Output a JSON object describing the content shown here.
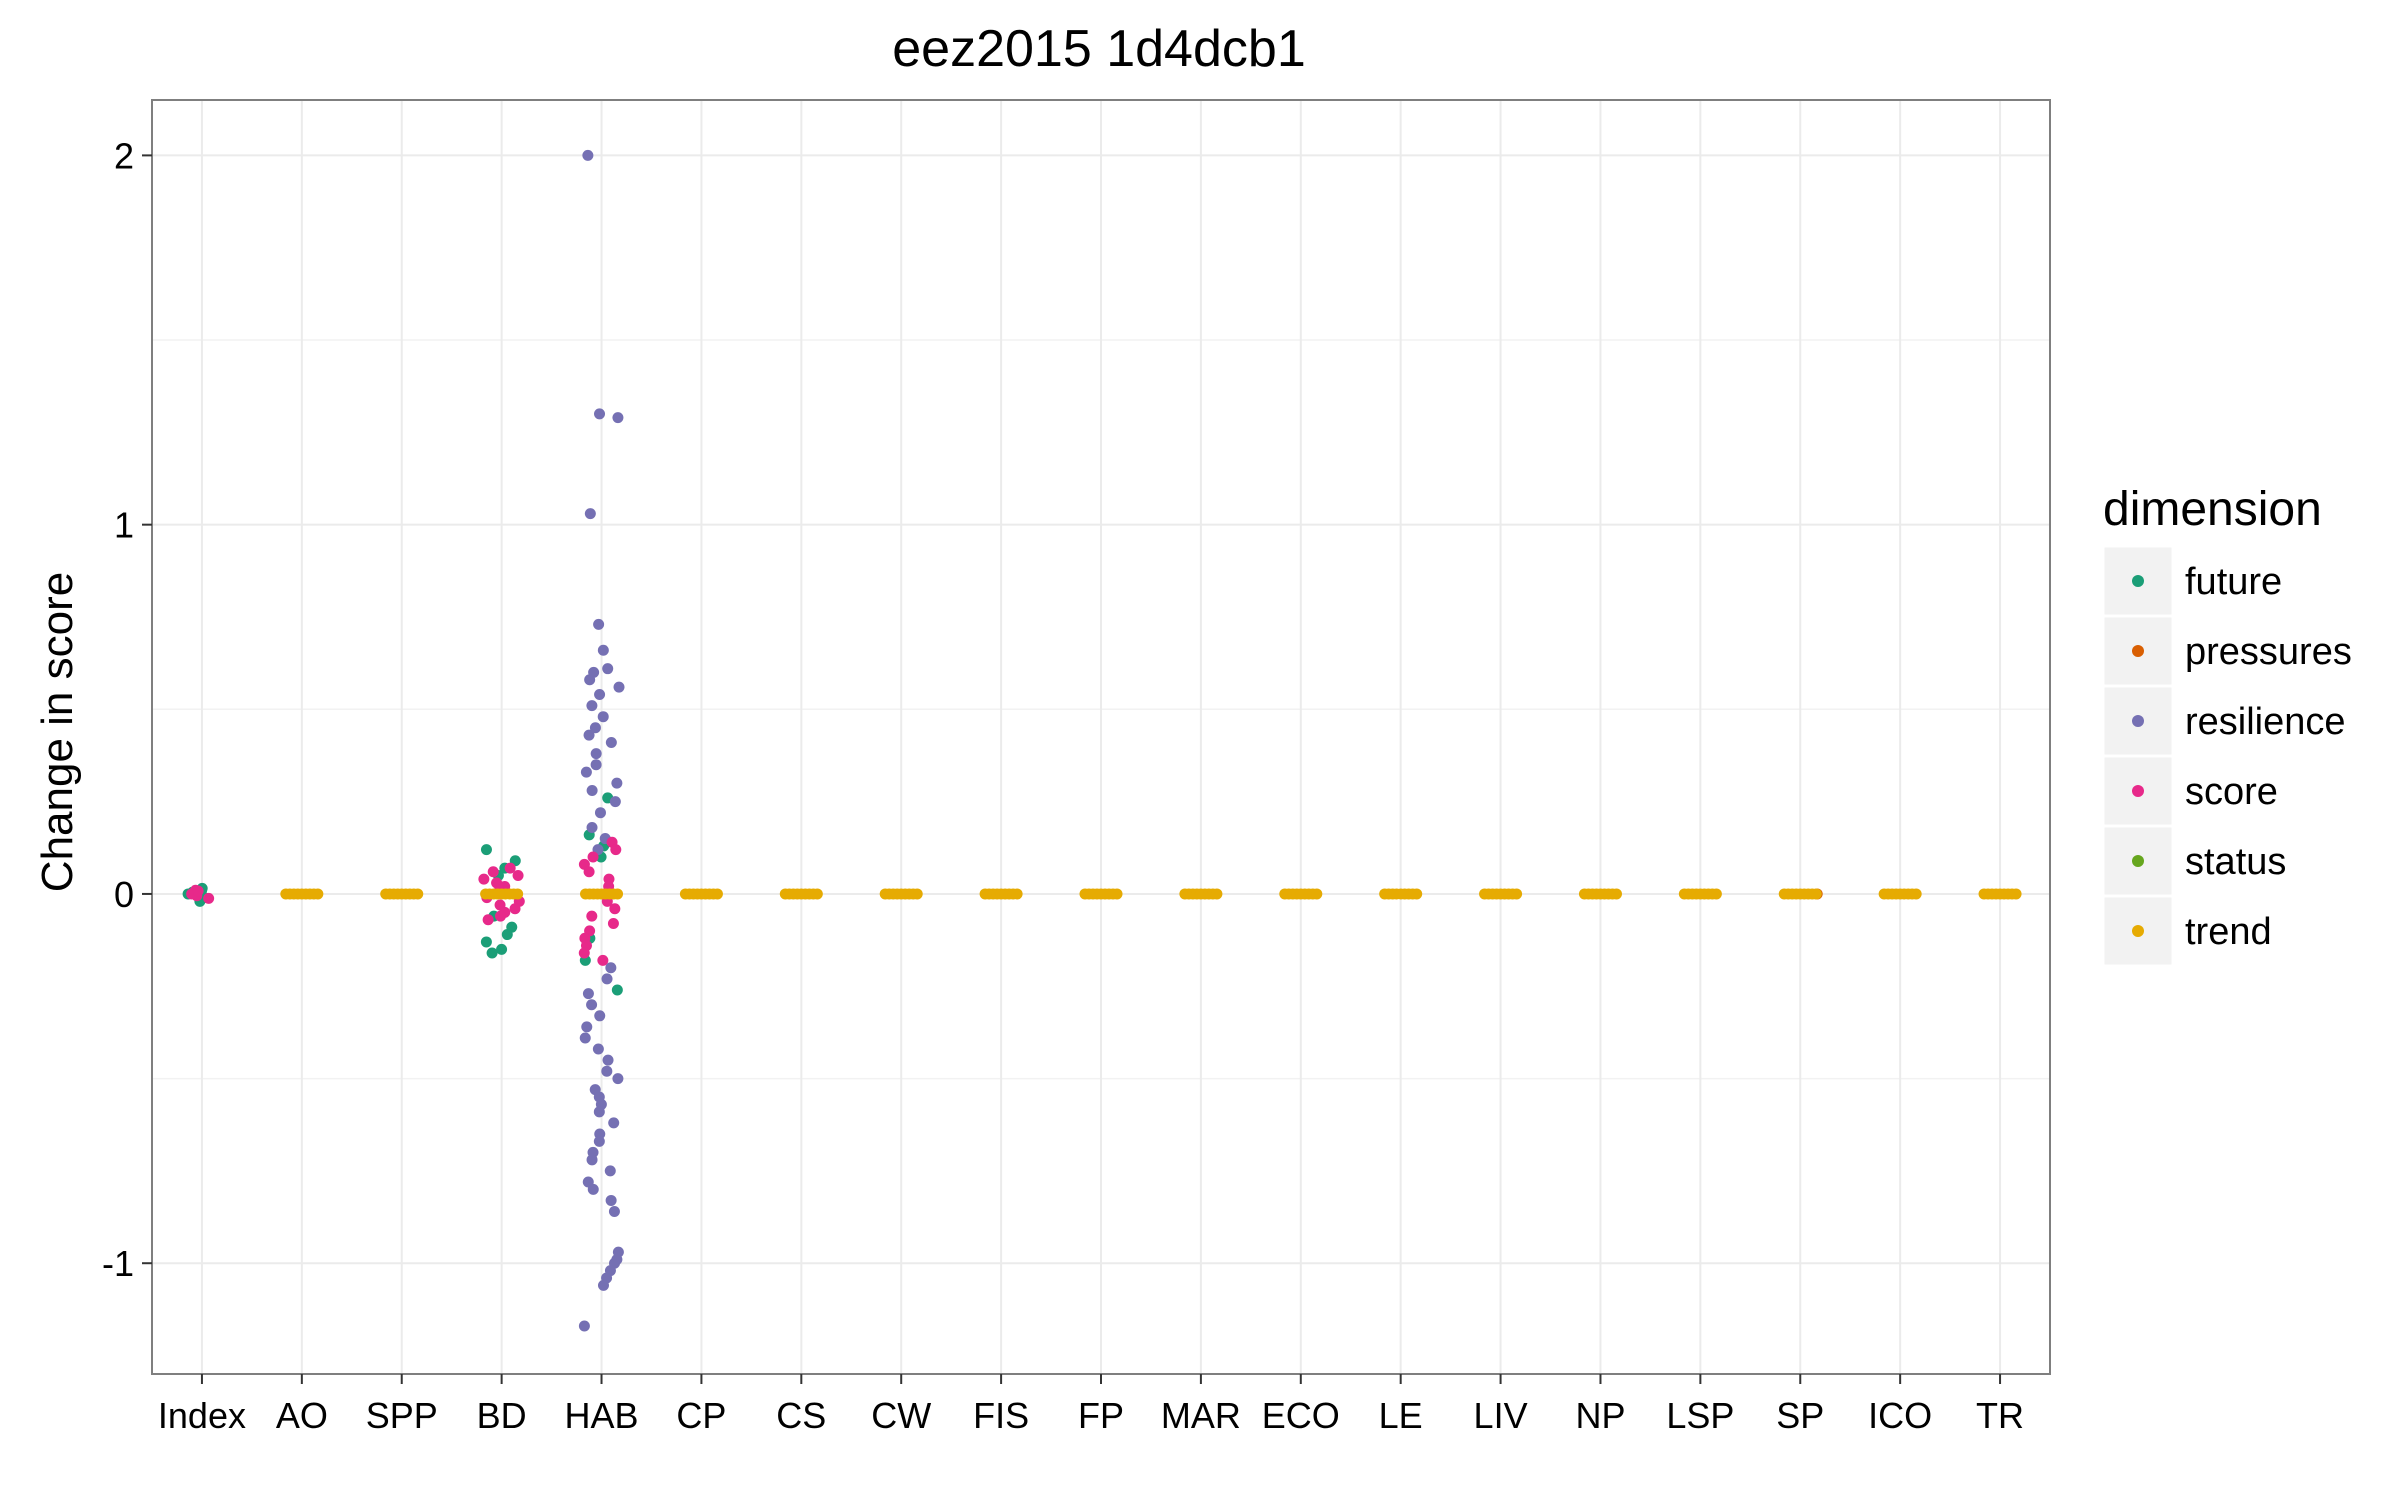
{
  "chart_data": {
    "type": "scatter",
    "title": "eez2015 1d4dcb1",
    "xlabel": "",
    "ylabel": "Change in score",
    "categories": [
      "Index",
      "AO",
      "SPP",
      "BD",
      "HAB",
      "CP",
      "CS",
      "CW",
      "FIS",
      "FP",
      "MAR",
      "ECO",
      "LE",
      "LIV",
      "NP",
      "LSP",
      "SP",
      "ICO",
      "TR"
    ],
    "y_ticks": [
      -1,
      0,
      1,
      2
    ],
    "ylim": [
      -1.3,
      2.15
    ],
    "grid": true,
    "legend": {
      "title": "dimension",
      "placement": "right",
      "items": [
        {
          "name": "future",
          "color": "#1b9e77"
        },
        {
          "name": "pressures",
          "color": "#d95f02"
        },
        {
          "name": "resilience",
          "color": "#7570b3"
        },
        {
          "name": "score",
          "color": "#e7298a"
        },
        {
          "name": "status",
          "color": "#66a61e"
        },
        {
          "name": "trend",
          "color": "#e6ab02"
        }
      ]
    },
    "series": [
      {
        "name": "future",
        "points": [
          [
            "Index",
            0.01
          ],
          [
            "Index",
            -0.01
          ],
          [
            "Index",
            0.0
          ],
          [
            "Index",
            0.005
          ],
          [
            "Index",
            -0.02
          ],
          [
            "Index",
            0.015
          ],
          [
            "BD",
            0.12
          ],
          [
            "BD",
            0.09
          ],
          [
            "BD",
            0.07
          ],
          [
            "BD",
            0.05
          ],
          [
            "BD",
            -0.06
          ],
          [
            "BD",
            -0.09
          ],
          [
            "BD",
            -0.11
          ],
          [
            "BD",
            -0.13
          ],
          [
            "BD",
            -0.15
          ],
          [
            "BD",
            -0.16
          ],
          [
            "HAB",
            0.26
          ],
          [
            "HAB",
            0.16
          ],
          [
            "HAB",
            0.13
          ],
          [
            "HAB",
            0.1
          ],
          [
            "HAB",
            -0.12
          ],
          [
            "HAB",
            -0.18
          ],
          [
            "HAB",
            -0.26
          ]
        ]
      },
      {
        "name": "pressures",
        "points": [
          [
            "SP",
            0.0
          ]
        ]
      },
      {
        "name": "resilience",
        "points": [
          [
            "HAB",
            2.0
          ],
          [
            "HAB",
            1.3
          ],
          [
            "HAB",
            1.29
          ],
          [
            "HAB",
            1.03
          ],
          [
            "HAB",
            0.73
          ],
          [
            "HAB",
            0.66
          ],
          [
            "HAB",
            0.61
          ],
          [
            "HAB",
            0.6
          ],
          [
            "HAB",
            0.58
          ],
          [
            "HAB",
            0.56
          ],
          [
            "HAB",
            0.54
          ],
          [
            "HAB",
            0.51
          ],
          [
            "HAB",
            0.48
          ],
          [
            "HAB",
            0.45
          ],
          [
            "HAB",
            0.43
          ],
          [
            "HAB",
            0.41
          ],
          [
            "HAB",
            0.38
          ],
          [
            "HAB",
            0.35
          ],
          [
            "HAB",
            0.33
          ],
          [
            "HAB",
            0.3
          ],
          [
            "HAB",
            0.28
          ],
          [
            "HAB",
            0.25
          ],
          [
            "HAB",
            0.22
          ],
          [
            "HAB",
            0.18
          ],
          [
            "HAB",
            0.15
          ],
          [
            "HAB",
            0.12
          ],
          [
            "HAB",
            -0.2
          ],
          [
            "HAB",
            -0.23
          ],
          [
            "HAB",
            -0.27
          ],
          [
            "HAB",
            -0.3
          ],
          [
            "HAB",
            -0.33
          ],
          [
            "HAB",
            -0.36
          ],
          [
            "HAB",
            -0.39
          ],
          [
            "HAB",
            -0.42
          ],
          [
            "HAB",
            -0.45
          ],
          [
            "HAB",
            -0.48
          ],
          [
            "HAB",
            -0.5
          ],
          [
            "HAB",
            -0.53
          ],
          [
            "HAB",
            -0.55
          ],
          [
            "HAB",
            -0.57
          ],
          [
            "HAB",
            -0.59
          ],
          [
            "HAB",
            -0.62
          ],
          [
            "HAB",
            -0.65
          ],
          [
            "HAB",
            -0.67
          ],
          [
            "HAB",
            -0.7
          ],
          [
            "HAB",
            -0.72
          ],
          [
            "HAB",
            -0.75
          ],
          [
            "HAB",
            -0.78
          ],
          [
            "HAB",
            -0.8
          ],
          [
            "HAB",
            -0.83
          ],
          [
            "HAB",
            -0.86
          ],
          [
            "HAB",
            -0.97
          ],
          [
            "HAB",
            -0.99
          ],
          [
            "HAB",
            -1.0
          ],
          [
            "HAB",
            -1.02
          ],
          [
            "HAB",
            -1.04
          ],
          [
            "HAB",
            -1.06
          ],
          [
            "HAB",
            -1.17
          ]
        ]
      },
      {
        "name": "score",
        "points": [
          [
            "Index",
            0.01
          ],
          [
            "Index",
            -0.005
          ],
          [
            "Index",
            0.0
          ],
          [
            "Index",
            0.008
          ],
          [
            "Index",
            -0.012
          ],
          [
            "BD",
            0.07
          ],
          [
            "BD",
            0.06
          ],
          [
            "BD",
            0.05
          ],
          [
            "BD",
            0.04
          ],
          [
            "BD",
            0.03
          ],
          [
            "BD",
            0.02
          ],
          [
            "BD",
            0.01
          ],
          [
            "BD",
            -0.01
          ],
          [
            "BD",
            -0.02
          ],
          [
            "BD",
            -0.03
          ],
          [
            "BD",
            -0.04
          ],
          [
            "BD",
            -0.05
          ],
          [
            "BD",
            -0.06
          ],
          [
            "BD",
            -0.07
          ],
          [
            "HAB",
            0.14
          ],
          [
            "HAB",
            0.12
          ],
          [
            "HAB",
            0.1
          ],
          [
            "HAB",
            0.08
          ],
          [
            "HAB",
            0.06
          ],
          [
            "HAB",
            0.04
          ],
          [
            "HAB",
            0.02
          ],
          [
            "HAB",
            -0.02
          ],
          [
            "HAB",
            -0.04
          ],
          [
            "HAB",
            -0.06
          ],
          [
            "HAB",
            -0.08
          ],
          [
            "HAB",
            -0.1
          ],
          [
            "HAB",
            -0.12
          ],
          [
            "HAB",
            -0.14
          ],
          [
            "HAB",
            -0.16
          ],
          [
            "HAB",
            -0.18
          ]
        ]
      },
      {
        "name": "status",
        "points": []
      },
      {
        "name": "trend",
        "points": [
          [
            "AO",
            0.0
          ],
          [
            "SPP",
            0.0
          ],
          [
            "BD",
            0.0
          ],
          [
            "HAB",
            0.0
          ],
          [
            "CP",
            0.0
          ],
          [
            "CS",
            0.0
          ],
          [
            "CW",
            0.0
          ],
          [
            "FIS",
            0.0
          ],
          [
            "FP",
            0.0
          ],
          [
            "MAR",
            0.0
          ],
          [
            "ECO",
            0.0
          ],
          [
            "LE",
            0.0
          ],
          [
            "LIV",
            0.0
          ],
          [
            "NP",
            0.0
          ],
          [
            "LSP",
            0.0
          ],
          [
            "SP",
            0.0
          ],
          [
            "ICO",
            0.0
          ],
          [
            "TR",
            0.0
          ]
        ]
      }
    ]
  }
}
